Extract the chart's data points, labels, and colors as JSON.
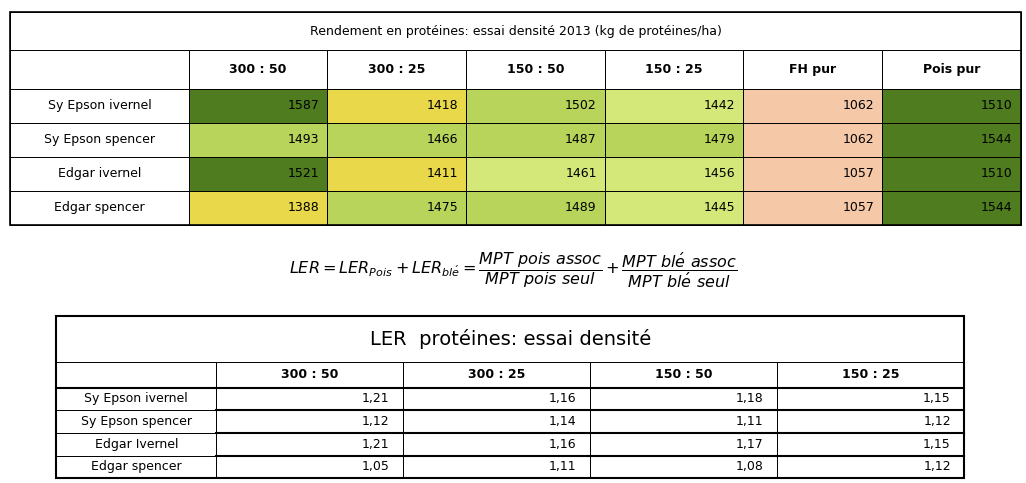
{
  "table1_title": "Rendement en protéines: essai densité 2013 (kg de protéines/ha)",
  "table1_cols": [
    "",
    "300 : 50",
    "300 : 25",
    "150 : 50",
    "150 : 25",
    "FH pur",
    "Pois pur"
  ],
  "table1_rows": [
    [
      "Sy Epson ivernel",
      "1587",
      "1418",
      "1502",
      "1442",
      "1062",
      "1510"
    ],
    [
      "Sy Epson spencer",
      "1493",
      "1466",
      "1487",
      "1479",
      "1062",
      "1544"
    ],
    [
      "Edgar ivernel",
      "1521",
      "1411",
      "1461",
      "1456",
      "1057",
      "1510"
    ],
    [
      "Edgar spencer",
      "1388",
      "1475",
      "1489",
      "1445",
      "1057",
      "1544"
    ]
  ],
  "table1_cell_colors": [
    [
      "white",
      "#4e7c1f",
      "#e8d84a",
      "#b8d45a",
      "#d4e87a",
      "#f5c8a8",
      "#4e7c1f"
    ],
    [
      "white",
      "#b8d45a",
      "#b8d45a",
      "#b8d45a",
      "#b8d45a",
      "#f5c8a8",
      "#4e7c1f"
    ],
    [
      "white",
      "#4e7c1f",
      "#e8d84a",
      "#d4e87a",
      "#d4e87a",
      "#f5c8a8",
      "#4e7c1f"
    ],
    [
      "white",
      "#e8d84a",
      "#b8d45a",
      "#b8d45a",
      "#d4e87a",
      "#f5c8a8",
      "#4e7c1f"
    ]
  ],
  "table2_title": "LER  protéines: essai densité",
  "table2_cols": [
    "",
    "300 : 50",
    "300 : 25",
    "150 : 50",
    "150 : 25"
  ],
  "table2_rows": [
    [
      "Sy Epson ivernel",
      "1,21",
      "1,16",
      "1,18",
      "1,15"
    ],
    [
      "Sy Epson spencer",
      "1,12",
      "1,14",
      "1,11",
      "1,12"
    ],
    [
      "Edgar Ivernel",
      "1,21",
      "1,16",
      "1,17",
      "1,15"
    ],
    [
      "Edgar spencer",
      "1,05",
      "1,11",
      "1,08",
      "1,12"
    ]
  ],
  "fig_width": 10.26,
  "fig_height": 4.83,
  "dpi": 100
}
